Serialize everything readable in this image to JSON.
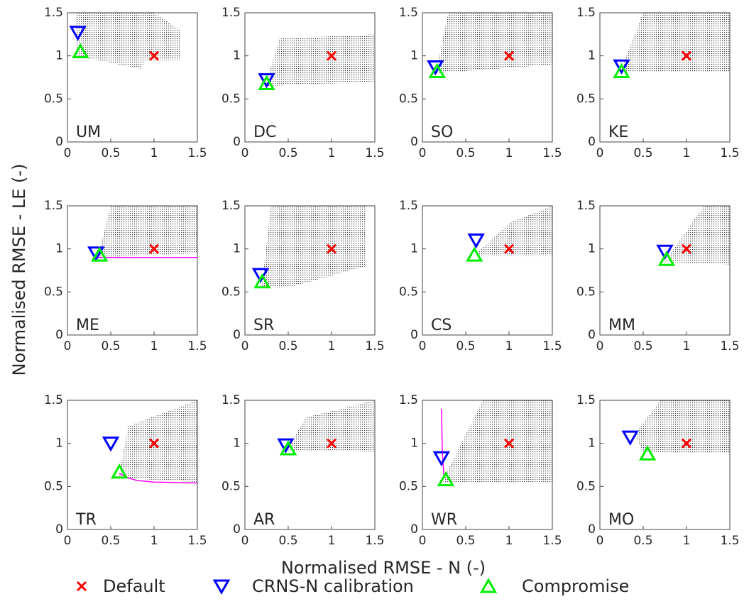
{
  "axes": {
    "xlabel": "Normalised RMSE - N (-)",
    "ylabel": "Normalised RMSE - LE (-)"
  },
  "chart_data": [
    {
      "type": "scatter",
      "title": "UM",
      "xlim": [
        0,
        1.5
      ],
      "ylim": [
        0,
        1.5
      ],
      "xticks": [
        0,
        0.5,
        1,
        1.5
      ],
      "yticks": [
        0,
        0.5,
        1,
        1.5
      ],
      "cloud": {
        "x": [
          0.1,
          0.5,
          1.0,
          1.3,
          1.3,
          0.9,
          0.85,
          0.1
        ],
        "y": [
          1.5,
          1.5,
          1.5,
          1.3,
          0.95,
          0.95,
          0.85,
          1.0
        ]
      },
      "series": [
        {
          "name": "Default",
          "color": "#ff0000",
          "marker": "x",
          "x": [
            1
          ],
          "y": [
            1
          ]
        },
        {
          "name": "CRNS-N calibration",
          "color": "#0000ff",
          "marker": "v",
          "x": [
            0.12
          ],
          "y": [
            1.27
          ]
        },
        {
          "name": "Compromise",
          "color": "#00ee00",
          "marker": "^",
          "x": [
            0.15
          ],
          "y": [
            1.05
          ]
        }
      ]
    },
    {
      "type": "scatter",
      "title": "DC",
      "xlim": [
        0,
        1.5
      ],
      "ylim": [
        0,
        1.5
      ],
      "xticks": [
        0,
        0.5,
        1,
        1.5
      ],
      "yticks": [
        0,
        0.5,
        1,
        1.5
      ],
      "cloud": {
        "x": [
          0.25,
          0.4,
          1.5,
          1.5,
          0.25
        ],
        "y": [
          0.7,
          1.2,
          1.25,
          0.7,
          0.65
        ]
      },
      "series": [
        {
          "name": "Default",
          "color": "#ff0000",
          "marker": "x",
          "x": [
            1
          ],
          "y": [
            1
          ]
        },
        {
          "name": "CRNS-N calibration",
          "color": "#0000ff",
          "marker": "v",
          "x": [
            0.25
          ],
          "y": [
            0.72
          ]
        },
        {
          "name": "Compromise",
          "color": "#00ee00",
          "marker": "^",
          "x": [
            0.25
          ],
          "y": [
            0.68
          ]
        }
      ]
    },
    {
      "type": "scatter",
      "title": "SO",
      "xlim": [
        0,
        1.5
      ],
      "ylim": [
        0,
        1.5
      ],
      "xticks": [
        0,
        0.5,
        1,
        1.5
      ],
      "yticks": [
        0,
        0.5,
        1,
        1.5
      ],
      "cloud": {
        "x": [
          0.15,
          0.3,
          1.5,
          1.5,
          0.2
        ],
        "y": [
          0.8,
          1.5,
          1.5,
          0.9,
          0.8
        ]
      },
      "series": [
        {
          "name": "Default",
          "color": "#ff0000",
          "marker": "x",
          "x": [
            1
          ],
          "y": [
            1
          ]
        },
        {
          "name": "CRNS-N calibration",
          "color": "#0000ff",
          "marker": "v",
          "x": [
            0.15
          ],
          "y": [
            0.87
          ]
        },
        {
          "name": "Compromise",
          "color": "#00ee00",
          "marker": "^",
          "x": [
            0.17
          ],
          "y": [
            0.82
          ]
        }
      ]
    },
    {
      "type": "scatter",
      "title": "KE",
      "xlim": [
        0,
        1.5
      ],
      "ylim": [
        0,
        1.5
      ],
      "xticks": [
        0,
        0.5,
        1,
        1.5
      ],
      "yticks": [
        0,
        0.5,
        1,
        1.5
      ],
      "cloud": {
        "x": [
          0.25,
          0.5,
          1.5,
          1.5,
          0.25
        ],
        "y": [
          0.85,
          1.5,
          1.5,
          0.82,
          0.82
        ]
      },
      "series": [
        {
          "name": "Default",
          "color": "#ff0000",
          "marker": "x",
          "x": [
            1
          ],
          "y": [
            1
          ]
        },
        {
          "name": "CRNS-N calibration",
          "color": "#0000ff",
          "marker": "v",
          "x": [
            0.25
          ],
          "y": [
            0.88
          ]
        },
        {
          "name": "Compromise",
          "color": "#00ee00",
          "marker": "^",
          "x": [
            0.25
          ],
          "y": [
            0.82
          ]
        }
      ]
    },
    {
      "type": "scatter",
      "title": "ME",
      "xlim": [
        0,
        1.5
      ],
      "ylim": [
        0,
        1.5
      ],
      "xticks": [
        0,
        0.5,
        1,
        1.5
      ],
      "yticks": [
        0,
        0.5,
        1,
        1.5
      ],
      "cloud": {
        "x": [
          0.35,
          0.5,
          1.5,
          1.5,
          0.35
        ],
        "y": [
          0.9,
          1.5,
          1.5,
          0.95,
          0.9
        ]
      },
      "line": {
        "color": "#ff00ff",
        "x": [
          0.33,
          1.5
        ],
        "y": [
          0.9,
          0.9
        ]
      },
      "series": [
        {
          "name": "Default",
          "color": "#ff0000",
          "marker": "x",
          "x": [
            1
          ],
          "y": [
            1
          ]
        },
        {
          "name": "CRNS-N calibration",
          "color": "#0000ff",
          "marker": "v",
          "x": [
            0.33
          ],
          "y": [
            0.95
          ]
        },
        {
          "name": "Compromise",
          "color": "#00ee00",
          "marker": "^",
          "x": [
            0.37
          ],
          "y": [
            0.93
          ]
        }
      ]
    },
    {
      "type": "scatter",
      "title": "SR",
      "xlim": [
        0,
        1.5
      ],
      "ylim": [
        0,
        1.5
      ],
      "xticks": [
        0,
        0.5,
        1,
        1.5
      ],
      "yticks": [
        0,
        0.5,
        1,
        1.5
      ],
      "cloud": {
        "x": [
          0.2,
          0.3,
          1.4,
          1.4,
          0.5,
          0.2
        ],
        "y": [
          0.6,
          1.5,
          1.5,
          0.8,
          0.55,
          0.55
        ]
      },
      "series": [
        {
          "name": "Default",
          "color": "#ff0000",
          "marker": "x",
          "x": [
            1
          ],
          "y": [
            1
          ]
        },
        {
          "name": "CRNS-N calibration",
          "color": "#0000ff",
          "marker": "v",
          "x": [
            0.18
          ],
          "y": [
            0.7
          ]
        },
        {
          "name": "Compromise",
          "color": "#00ee00",
          "marker": "^",
          "x": [
            0.2
          ],
          "y": [
            0.62
          ]
        }
      ]
    },
    {
      "type": "scatter",
      "title": "CS",
      "xlim": [
        0,
        1.5
      ],
      "ylim": [
        0,
        1.5
      ],
      "xticks": [
        0,
        0.5,
        1,
        1.5
      ],
      "yticks": [
        0,
        0.5,
        1,
        1.5
      ],
      "cloud": {
        "x": [
          0.6,
          1.0,
          1.5,
          1.5,
          0.6
        ],
        "y": [
          0.92,
          1.3,
          1.5,
          0.92,
          0.92
        ]
      },
      "series": [
        {
          "name": "Default",
          "color": "#ff0000",
          "marker": "x",
          "x": [
            1
          ],
          "y": [
            1
          ]
        },
        {
          "name": "CRNS-N calibration",
          "color": "#0000ff",
          "marker": "v",
          "x": [
            0.62
          ],
          "y": [
            1.1
          ]
        },
        {
          "name": "Compromise",
          "color": "#00ee00",
          "marker": "^",
          "x": [
            0.6
          ],
          "y": [
            0.93
          ]
        }
      ]
    },
    {
      "type": "scatter",
      "title": "MM",
      "xlim": [
        0,
        1.5
      ],
      "ylim": [
        0,
        1.5
      ],
      "xticks": [
        0,
        0.5,
        1,
        1.5
      ],
      "yticks": [
        0,
        0.5,
        1,
        1.5
      ],
      "cloud": {
        "x": [
          0.75,
          1.2,
          1.5,
          1.5,
          0.75
        ],
        "y": [
          0.85,
          1.5,
          1.5,
          0.82,
          0.85
        ]
      },
      "series": [
        {
          "name": "Default",
          "color": "#ff0000",
          "marker": "x",
          "x": [
            1
          ],
          "y": [
            1
          ]
        },
        {
          "name": "CRNS-N calibration",
          "color": "#0000ff",
          "marker": "v",
          "x": [
            0.75
          ],
          "y": [
            0.97
          ]
        },
        {
          "name": "Compromise",
          "color": "#00ee00",
          "marker": "^",
          "x": [
            0.77
          ],
          "y": [
            0.88
          ]
        }
      ]
    },
    {
      "type": "scatter",
      "title": "TR",
      "xlim": [
        0,
        1.5
      ],
      "ylim": [
        0,
        1.5
      ],
      "xticks": [
        0,
        0.5,
        1,
        1.5
      ],
      "yticks": [
        0,
        0.5,
        1,
        1.5
      ],
      "cloud": {
        "x": [
          0.6,
          0.7,
          1.5,
          1.5,
          0.6
        ],
        "y": [
          0.65,
          1.2,
          1.5,
          0.55,
          0.6
        ]
      },
      "line": {
        "color": "#ff00ff",
        "x": [
          0.6,
          0.7,
          0.8,
          1.0,
          1.5
        ],
        "y": [
          0.65,
          0.6,
          0.57,
          0.55,
          0.54
        ]
      },
      "series": [
        {
          "name": "Default",
          "color": "#ff0000",
          "marker": "x",
          "x": [
            1
          ],
          "y": [
            1
          ]
        },
        {
          "name": "CRNS-N calibration",
          "color": "#0000ff",
          "marker": "v",
          "x": [
            0.5
          ],
          "y": [
            1.0
          ]
        },
        {
          "name": "Compromise",
          "color": "#00ee00",
          "marker": "^",
          "x": [
            0.6
          ],
          "y": [
            0.67
          ]
        }
      ]
    },
    {
      "type": "scatter",
      "title": "AR",
      "xlim": [
        0,
        1.5
      ],
      "ylim": [
        0,
        1.5
      ],
      "xticks": [
        0,
        0.5,
        1,
        1.5
      ],
      "yticks": [
        0,
        0.5,
        1,
        1.5
      ],
      "cloud": {
        "x": [
          0.5,
          0.7,
          1.5,
          1.5,
          0.5
        ],
        "y": [
          0.95,
          1.3,
          1.5,
          0.9,
          0.92
        ]
      },
      "series": [
        {
          "name": "Default",
          "color": "#ff0000",
          "marker": "x",
          "x": [
            1
          ],
          "y": [
            1
          ]
        },
        {
          "name": "CRNS-N calibration",
          "color": "#0000ff",
          "marker": "v",
          "x": [
            0.47
          ],
          "y": [
            0.98
          ]
        },
        {
          "name": "Compromise",
          "color": "#00ee00",
          "marker": "^",
          "x": [
            0.5
          ],
          "y": [
            0.94
          ]
        }
      ]
    },
    {
      "type": "scatter",
      "title": "WR",
      "xlim": [
        0,
        1.5
      ],
      "ylim": [
        0,
        1.5
      ],
      "xticks": [
        0,
        0.5,
        1,
        1.5
      ],
      "yticks": [
        0,
        0.5,
        1,
        1.5
      ],
      "cloud": {
        "x": [
          0.25,
          0.7,
          1.5,
          1.5,
          0.25
        ],
        "y": [
          0.6,
          1.5,
          1.5,
          0.55,
          0.55
        ]
      },
      "line": {
        "color": "#ff00ff",
        "x": [
          0.22,
          0.23,
          0.25
        ],
        "y": [
          1.4,
          0.9,
          0.6
        ]
      },
      "series": [
        {
          "name": "Default",
          "color": "#ff0000",
          "marker": "x",
          "x": [
            1
          ],
          "y": [
            1
          ]
        },
        {
          "name": "CRNS-N calibration",
          "color": "#0000ff",
          "marker": "v",
          "x": [
            0.22
          ],
          "y": [
            0.83
          ]
        },
        {
          "name": "Compromise",
          "color": "#00ee00",
          "marker": "^",
          "x": [
            0.27
          ],
          "y": [
            0.58
          ]
        }
      ]
    },
    {
      "type": "scatter",
      "title": "MO",
      "xlim": [
        0,
        1.5
      ],
      "ylim": [
        0,
        1.5
      ],
      "xticks": [
        0,
        0.5,
        1,
        1.5
      ],
      "yticks": [
        0,
        0.5,
        1,
        1.5
      ],
      "cloud": {
        "x": [
          0.4,
          0.7,
          1.5,
          1.5,
          0.5
        ],
        "y": [
          1.1,
          1.5,
          1.5,
          0.88,
          0.9
        ]
      },
      "series": [
        {
          "name": "Default",
          "color": "#ff0000",
          "marker": "x",
          "x": [
            1
          ],
          "y": [
            1
          ]
        },
        {
          "name": "CRNS-N calibration",
          "color": "#0000ff",
          "marker": "v",
          "x": [
            0.35
          ],
          "y": [
            1.07
          ]
        },
        {
          "name": "Compromise",
          "color": "#00ee00",
          "marker": "^",
          "x": [
            0.55
          ],
          "y": [
            0.88
          ]
        }
      ]
    }
  ]
}
